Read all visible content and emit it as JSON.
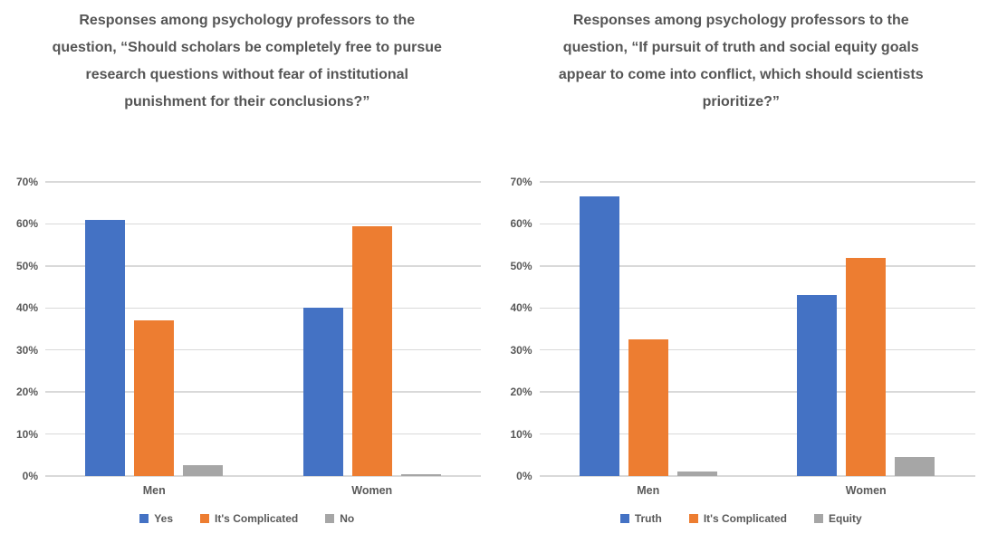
{
  "figure": {
    "background_color": "#ffffff",
    "text_color": "#595959",
    "title_color": "#555555",
    "gridline_color": "#d9d9d9"
  },
  "chart_data": [
    {
      "type": "bar",
      "title": "Responses among psychology professors to the question, “Should scholars be completely free to pursue research questions without fear of institutional punishment for their conclusions?”",
      "categories": [
        "Men",
        "Women"
      ],
      "series": [
        {
          "name": "Yes",
          "color": "#4472C4",
          "values": [
            61,
            40
          ]
        },
        {
          "name": "It's Complicated",
          "color": "#ED7D31",
          "values": [
            37,
            59.5
          ]
        },
        {
          "name": "No",
          "color": "#A6A6A6",
          "values": [
            2.5,
            0.5
          ]
        }
      ],
      "ylabel": "",
      "xlabel": "",
      "ylim": [
        0,
        70
      ],
      "ytick_step": 10,
      "ytick_labels": [
        "0%",
        "10%",
        "20%",
        "30%",
        "40%",
        "50%",
        "60%",
        "70%"
      ],
      "grid": true,
      "legend_position": "bottom"
    },
    {
      "type": "bar",
      "title": "Responses among psychology professors to the question, “If pursuit of truth and social equity goals appear to come into conflict, which should scientists prioritize?”",
      "categories": [
        "Men",
        "Women"
      ],
      "series": [
        {
          "name": "Truth",
          "color": "#4472C4",
          "values": [
            66.5,
            43
          ]
        },
        {
          "name": "It's Complicated",
          "color": "#ED7D31",
          "values": [
            32.5,
            52
          ]
        },
        {
          "name": "Equity",
          "color": "#A6A6A6",
          "values": [
            1,
            4.5
          ]
        }
      ],
      "ylabel": "",
      "xlabel": "",
      "ylim": [
        0,
        70
      ],
      "ytick_step": 10,
      "ytick_labels": [
        "0%",
        "10%",
        "20%",
        "30%",
        "40%",
        "50%",
        "60%",
        "70%"
      ],
      "grid": true,
      "legend_position": "bottom"
    }
  ]
}
